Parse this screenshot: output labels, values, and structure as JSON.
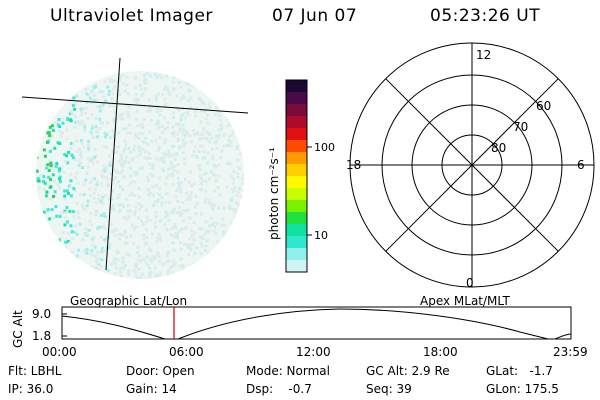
{
  "header": {
    "instrument": "Ultraviolet Imager",
    "date": "07 Jun 07",
    "time": "05:23:26 UT"
  },
  "colorbar": {
    "unit_label": "photon cm⁻²s⁻¹",
    "ticks": [
      "100",
      "10"
    ],
    "colors": [
      "#1a0a33",
      "#4a0a4a",
      "#7a0a3a",
      "#b00a2a",
      "#e01010",
      "#ff4a00",
      "#ff9a00",
      "#ffd000",
      "#fff800",
      "#c8ff00",
      "#78f000",
      "#20e040",
      "#10e0a0",
      "#30e8d0",
      "#90f0f0",
      "#d0f4f4"
    ]
  },
  "polar": {
    "mlt_labels": [
      "12",
      "18",
      "6",
      "0"
    ],
    "lat_labels": [
      "60",
      "70",
      "80"
    ]
  },
  "timeline": {
    "left_title": "Geographic Lat/Lon",
    "right_title": "Apex MLat/MLT",
    "axis_title": "GC Alt",
    "y_ticks": [
      "9.0",
      "1.8"
    ],
    "x_ticks": [
      "00:00",
      "06:00",
      "12:00",
      "18:00",
      "23:59"
    ],
    "marker_color": "#cc0000"
  },
  "info": {
    "flt": "Flt: LBHL",
    "ip": "IP: 36.0",
    "door": "Door: Open",
    "gain": "Gain: 14",
    "mode": "Mode: Normal",
    "dsp": "Dsp:    -0.7",
    "gcalt": "GC Alt: 2.9 Re",
    "seq": "Seq: 39",
    "glat": "GLat:   -1.7",
    "glon": "GLon: 175.5"
  }
}
